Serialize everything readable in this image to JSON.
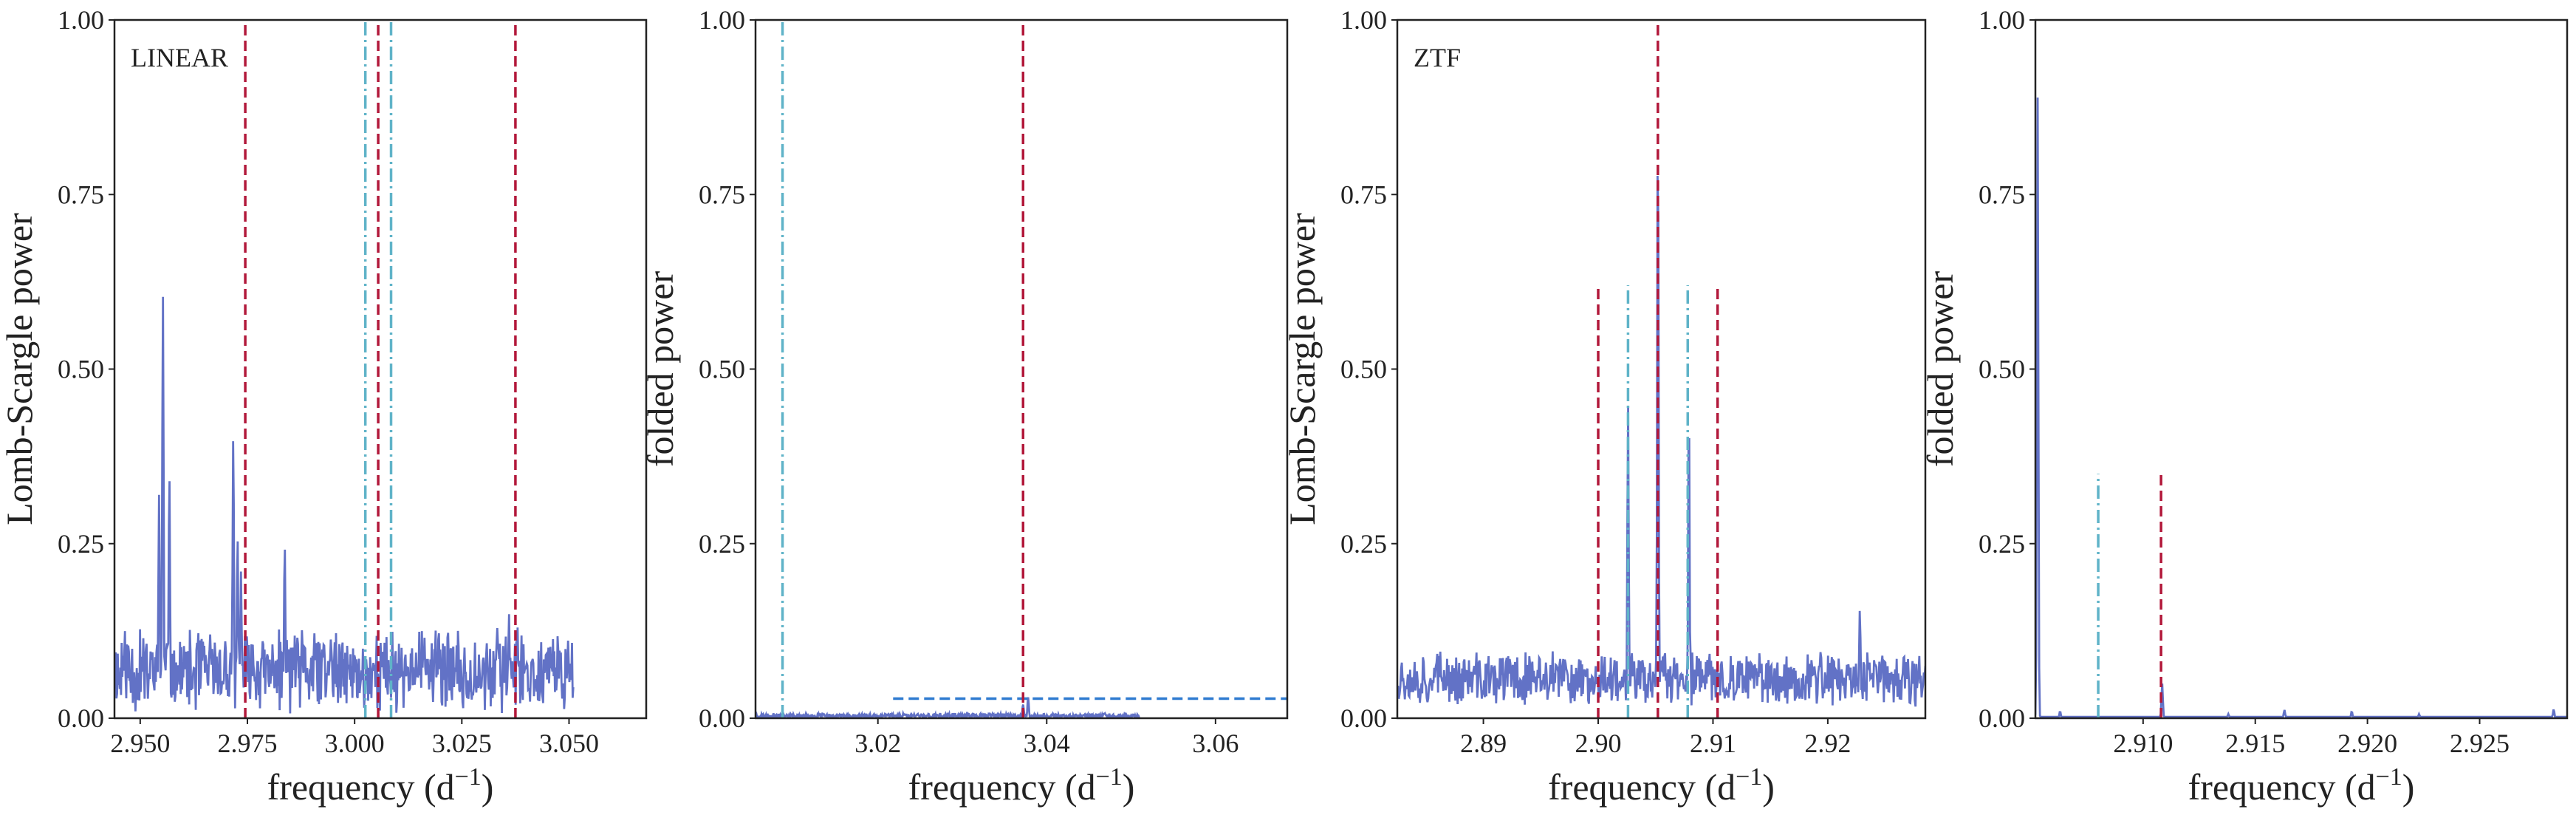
{
  "colors": {
    "spectrum": "#6272c6",
    "red": "#b2183a",
    "cyan": "#5fb3c8",
    "blue": "#2f7bd0"
  },
  "chart_data": [
    {
      "type": "line",
      "annotation": "LINEAR",
      "xlabel": "frequency (d",
      "xlabel_sup": "−1",
      "xlabel_end": ")",
      "ylabel": "Lomb-Scargle power",
      "xlim": [
        2.944,
        3.068
      ],
      "ylim": [
        0,
        1
      ],
      "xticks": [
        2.95,
        2.975,
        3.0,
        3.025,
        3.05
      ],
      "xtick_labels": [
        "2.950",
        "2.975",
        "3.000",
        "3.025",
        "3.050"
      ],
      "yticks": [
        0,
        0.25,
        0.5,
        0.75,
        1.0
      ],
      "ytick_labels": [
        "0.00",
        "0.25",
        "0.50",
        "0.75",
        "1.00"
      ],
      "series": [
        {
          "x_range": [
            2.944,
            3.051
          ],
          "baseline": 0.05,
          "noise": 0.09,
          "seed": 11,
          "peaks": [
            [
              2.9553,
              0.605
            ],
            [
              2.9544,
              0.32
            ],
            [
              2.9568,
              0.35
            ],
            [
              2.9717,
              0.405
            ],
            [
              2.9727,
              0.26
            ],
            [
              2.9735,
              0.21
            ],
            [
              2.9837,
              0.25
            ],
            [
              3.036,
              0.15
            ],
            [
              3.038,
              0.13
            ],
            [
              3.02,
              0.1
            ]
          ]
        }
      ],
      "vlines": [
        {
          "x": 2.9745,
          "ymax": 1.0,
          "style": "dashed",
          "color": "red"
        },
        {
          "x": 3.0055,
          "ymax": 1.0,
          "style": "dashed",
          "color": "red"
        },
        {
          "x": 3.0375,
          "ymax": 1.0,
          "style": "dashed",
          "color": "red"
        },
        {
          "x": 3.0025,
          "ymax": 1.0,
          "style": "dashdot",
          "color": "cyan"
        },
        {
          "x": 3.0085,
          "ymax": 1.0,
          "style": "dashdot",
          "color": "cyan"
        }
      ],
      "hlines": []
    },
    {
      "type": "line",
      "annotation": "",
      "xlabel": "frequency (d",
      "xlabel_sup": "−1",
      "xlabel_end": ")",
      "ylabel": "folded power",
      "xlim": [
        3.0055,
        3.0685
      ],
      "ylim": [
        0,
        1
      ],
      "xticks": [
        3.02,
        3.04,
        3.06
      ],
      "xtick_labels": [
        "3.02",
        "3.04",
        "3.06"
      ],
      "yticks": [
        0,
        0.25,
        0.5,
        0.75,
        1.0
      ],
      "ytick_labels": [
        "0.00",
        "0.25",
        "0.50",
        "0.75",
        "1.00"
      ],
      "series": [
        {
          "x_range": [
            3.0055,
            3.051
          ],
          "baseline": 0.002,
          "noise": 0.006,
          "seed": 23,
          "peaks": [
            [
              3.0378,
              0.03
            ],
            [
              3.0372,
              0.02
            ]
          ]
        }
      ],
      "vlines": [
        {
          "x": 3.0372,
          "ymax": 1.0,
          "style": "dashed",
          "color": "red"
        },
        {
          "x": 3.0087,
          "ymax": 1.0,
          "style": "dashdot",
          "color": "cyan"
        }
      ],
      "hlines": [
        {
          "y": 0.028,
          "x0": 3.0218,
          "x1": 3.0685,
          "style": "dashed",
          "color": "blue"
        }
      ]
    },
    {
      "type": "line",
      "annotation": "ZTF",
      "xlabel": "frequency (d",
      "xlabel_sup": "−1",
      "xlabel_end": ")",
      "ylabel": "Lomb-Scargle power",
      "xlim": [
        2.8825,
        2.9285
      ],
      "ylim": [
        0,
        1
      ],
      "xticks": [
        2.89,
        2.9,
        2.91,
        2.92
      ],
      "xtick_labels": [
        "2.89",
        "2.90",
        "2.91",
        "2.92"
      ],
      "yticks": [
        0,
        0.25,
        0.5,
        0.75,
        1.0
      ],
      "ytick_labels": [
        "0.00",
        "0.25",
        "0.50",
        "0.75",
        "1.00"
      ],
      "series": [
        {
          "x_range": [
            2.8825,
            2.9285
          ],
          "baseline": 0.045,
          "noise": 0.06,
          "seed": 37,
          "peaks": [
            [
              2.9052,
              0.87
            ],
            [
              2.9026,
              0.45
            ],
            [
              2.9079,
              0.46
            ],
            [
              2.9228,
              0.16
            ],
            [
              2.9039,
              0.08
            ],
            [
              2.9066,
              0.09
            ]
          ]
        }
      ],
      "vlines": [
        {
          "x": 2.9,
          "ymax": 0.62,
          "style": "dashed",
          "color": "red"
        },
        {
          "x": 2.9052,
          "ymax": 1.0,
          "style": "dashed",
          "color": "red"
        },
        {
          "x": 2.9104,
          "ymax": 0.62,
          "style": "dashed",
          "color": "red"
        },
        {
          "x": 2.9026,
          "ymax": 0.62,
          "style": "dashdot",
          "color": "cyan"
        },
        {
          "x": 2.9078,
          "ymax": 0.62,
          "style": "dashdot",
          "color": "cyan"
        }
      ],
      "hlines": []
    },
    {
      "type": "line",
      "annotation": "",
      "xlabel": "frequency (d",
      "xlabel_sup": "−1",
      "xlabel_end": ")",
      "ylabel": "folded power",
      "xlim": [
        2.9052,
        2.9289
      ],
      "ylim": [
        0,
        1
      ],
      "xticks": [
        2.91,
        2.915,
        2.92,
        2.925
      ],
      "xtick_labels": [
        "2.910",
        "2.915",
        "2.920",
        "2.925"
      ],
      "yticks": [
        0,
        0.25,
        0.5,
        0.75,
        1.0
      ],
      "ytick_labels": [
        "0.00",
        "0.25",
        "0.50",
        "0.75",
        "1.00"
      ],
      "series": [
        {
          "x_range": [
            2.9052,
            2.9289
          ],
          "baseline": 0.002,
          "noise": 0.0,
          "seed": 41,
          "peaks": [
            [
              2.9053,
              0.89
            ],
            [
              2.91085,
              0.05
            ],
            [
              2.9063,
              0.01
            ],
            [
              2.9163,
              0.012
            ],
            [
              2.9193,
              0.01
            ],
            [
              2.9283,
              0.013
            ],
            [
              2.9138,
              0.006
            ],
            [
              2.9223,
              0.006
            ]
          ]
        }
      ],
      "vlines": [
        {
          "x": 2.9108,
          "ymax": 0.35,
          "style": "dashed",
          "color": "red"
        },
        {
          "x": 2.908,
          "ymax": 0.35,
          "style": "dashdot",
          "color": "cyan"
        }
      ],
      "hlines": []
    }
  ]
}
